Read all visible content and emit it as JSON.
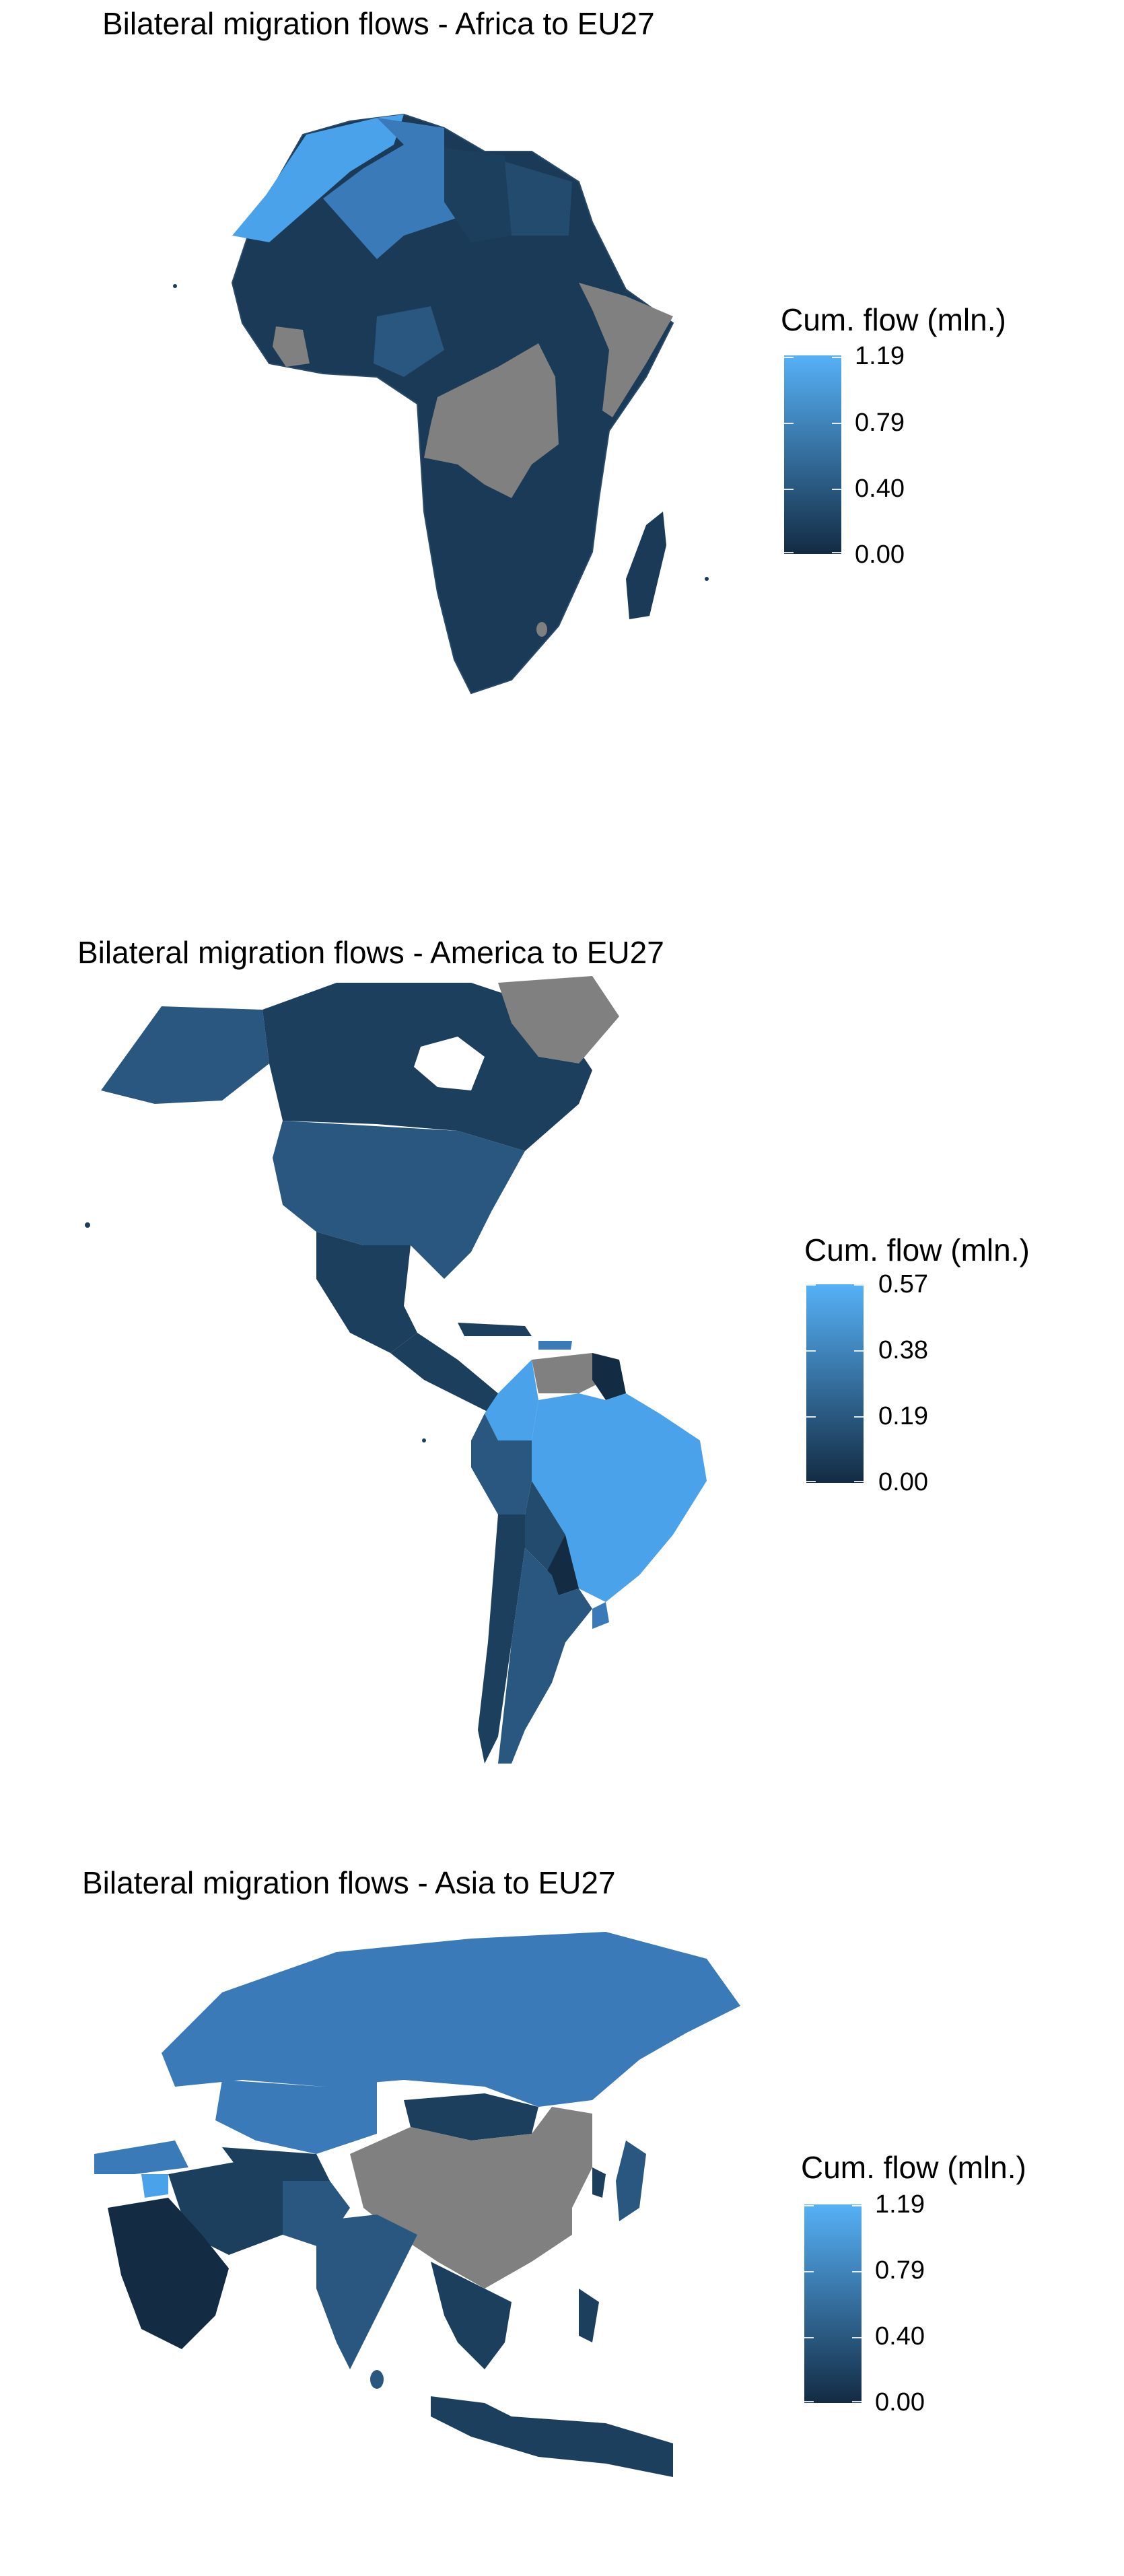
{
  "panels": [
    {
      "title": "Bilateral migration flows - Africa to EU27",
      "legend": {
        "title": "Cum. flow (mln.)",
        "labels": [
          "1.19",
          "0.79",
          "0.40",
          "0.00"
        ]
      }
    },
    {
      "title": "Bilateral migration flows - America to EU27",
      "legend": {
        "title": "Cum. flow (mln.)",
        "labels": [
          "0.57",
          "0.38",
          "0.19",
          "0.00"
        ]
      }
    },
    {
      "title": "Bilateral migration flows - Asia to EU27",
      "legend": {
        "title": "Cum. flow (mln.)",
        "labels": [
          "1.19",
          "0.79",
          "0.40",
          "0.00"
        ]
      }
    }
  ],
  "colors": {
    "scale_low": "#132b43",
    "scale_high": "#56b1f7",
    "missing": "#808080",
    "background": "#ffffff"
  }
}
